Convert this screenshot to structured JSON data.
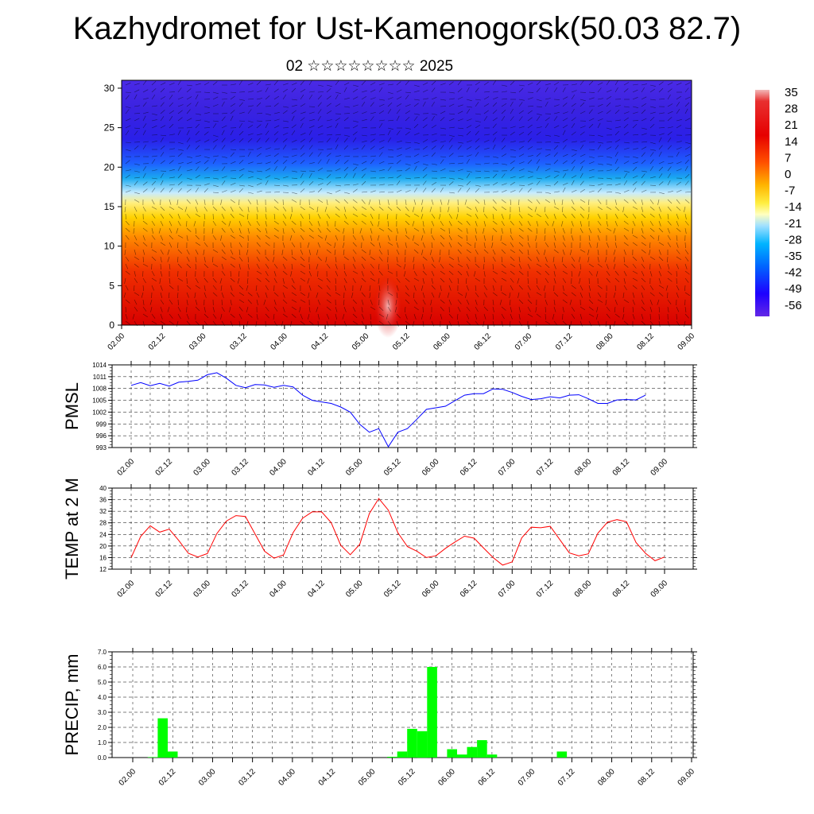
{
  "title": "Kazhydromet for Ust-Kamenogorsk(50.03 82.7)",
  "subtitle": "02 ☆☆☆☆☆☆☆☆ 2025",
  "chart_data": [
    {
      "type": "heatmap",
      "x_ticks": [
        "02.00",
        "02.12",
        "03.00",
        "03.12",
        "04.00",
        "04.12",
        "05.00",
        "05.12",
        "06.00",
        "06.12",
        "07.00",
        "07.12",
        "08.00",
        "08.12",
        "09.00"
      ],
      "y_ticks": [
        0,
        5,
        10,
        15,
        20,
        25,
        30
      ],
      "ylim": [
        0,
        31
      ],
      "colorbar_labels": [
        "35",
        "28",
        "21",
        "14",
        "7",
        "0",
        "-7",
        "-14",
        "-21",
        "-28",
        "-35",
        "-42",
        "-49",
        "-56"
      ],
      "colors": {
        "warm": "#e60000",
        "mid": "#ffe600",
        "cool": "#00b4ff",
        "cold": "#2800e6"
      },
      "overlay": "wind barbs"
    },
    {
      "type": "line",
      "ylabel": "PMSL",
      "ylim": [
        993,
        1014
      ],
      "y_ticks": [
        993,
        996,
        999,
        1002,
        1005,
        1008,
        1011,
        1014
      ],
      "x_ticks": [
        "02.00",
        "02.12",
        "03.00",
        "03.12",
        "04.00",
        "04.12",
        "05.00",
        "05.12",
        "06.00",
        "06.12",
        "07.00",
        "07.12",
        "08.00",
        "08.12",
        "09.00"
      ],
      "x_step_hours": 3,
      "color": "#0000ff",
      "values": [
        1008.8,
        1009.5,
        1008.7,
        1009.3,
        1008.6,
        1009.6,
        1009.8,
        1010.1,
        1011.5,
        1012.0,
        1010.6,
        1008.8,
        1008.2,
        1009.0,
        1008.9,
        1008.3,
        1008.8,
        1008.4,
        1006.3,
        1005.0,
        1004.6,
        1004.2,
        1003.3,
        1002.0,
        998.9,
        996.9,
        997.8,
        993.2,
        996.9,
        997.8,
        1000.2,
        1002.7,
        1003.1,
        1003.5,
        1004.9,
        1006.3,
        1006.7,
        1006.7,
        1007.9,
        1007.8,
        1007.0,
        1006.0,
        1005.2,
        1005.4,
        1005.9,
        1005.6,
        1006.3,
        1006.4,
        1005.4,
        1004.2,
        1004.2,
        1005.1,
        1005.2,
        1005.1,
        1006.3
      ]
    },
    {
      "type": "line",
      "ylabel": "TEMP at 2 M",
      "ylim": [
        12,
        40
      ],
      "y_ticks": [
        12,
        16,
        20,
        24,
        28,
        32,
        36,
        40
      ],
      "x_ticks": [
        "02.00",
        "02.12",
        "03.00",
        "03.12",
        "04.00",
        "04.12",
        "05.00",
        "05.12",
        "06.00",
        "06.12",
        "07.00",
        "07.12",
        "08.00",
        "08.12",
        "09.00"
      ],
      "x_step_hours": 3,
      "color": "#ff0000",
      "values": [
        16.0,
        23.3,
        27.0,
        24.8,
        25.8,
        21.9,
        17.5,
        16.2,
        17.4,
        24.3,
        28.6,
        30.5,
        30.2,
        24.2,
        18.2,
        15.8,
        16.9,
        24.6,
        29.6,
        31.8,
        31.8,
        28.1,
        20.3,
        17.0,
        20.6,
        31.2,
        36.4,
        32.4,
        24.6,
        19.8,
        18.2,
        16.0,
        16.6,
        19.2,
        21.4,
        23.4,
        22.7,
        19.3,
        16.0,
        13.4,
        14.5,
        22.8,
        26.5,
        26.3,
        26.8,
        22.2,
        17.6,
        16.6,
        17.3,
        24.4,
        28.2,
        29.1,
        28.4,
        21.2,
        17.5,
        14.9,
        16.2
      ]
    },
    {
      "type": "bar",
      "ylabel": "PRECIP, mm",
      "ylim": [
        0,
        7
      ],
      "y_ticks": [
        "0.0",
        "1.0",
        "2.0",
        "3.0",
        "4.0",
        "5.0",
        "6.0",
        "7.0"
      ],
      "x_ticks": [
        "02.00",
        "02.12",
        "03.00",
        "03.12",
        "04.00",
        "04.12",
        "05.00",
        "05.12",
        "06.00",
        "06.12",
        "07.00",
        "07.12",
        "08.00",
        "08.12",
        "09.00"
      ],
      "x_step_hours": 3,
      "color": "#00ff00",
      "values": [
        0,
        0,
        0.03,
        2.6,
        0.4,
        0,
        0,
        0,
        0,
        0,
        0,
        0,
        0,
        0,
        0,
        0,
        0,
        0,
        0,
        0,
        0,
        0,
        0,
        0,
        0,
        0,
        0.05,
        0.4,
        1.9,
        1.75,
        6.0,
        0,
        0.55,
        0.2,
        0.7,
        1.15,
        0.2,
        0,
        0,
        0,
        0,
        0,
        0,
        0.4,
        0,
        0,
        0,
        0,
        0,
        0,
        0,
        0,
        0,
        0,
        0,
        0
      ]
    }
  ]
}
